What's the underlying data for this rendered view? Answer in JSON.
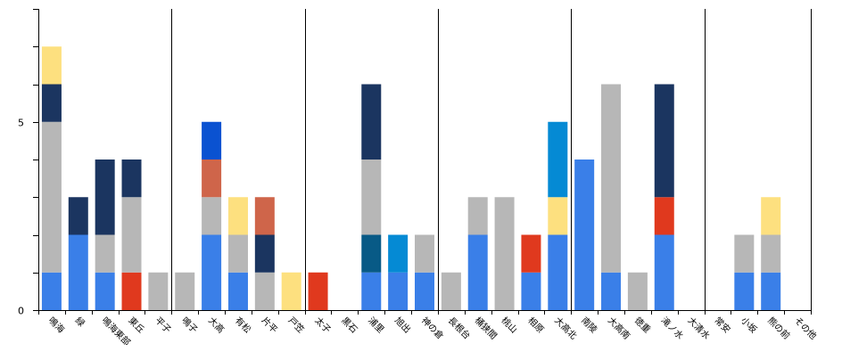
{
  "chart_data": {
    "type": "bar",
    "stacked": true,
    "title": "",
    "xlabel": "",
    "ylabel": "",
    "ylim": [
      0,
      8
    ],
    "yticks": [
      0,
      1,
      2,
      3,
      4,
      5,
      6,
      7,
      8
    ],
    "ytick_labels": {
      "0": "0",
      "5": "5"
    },
    "legend": "none",
    "grid": false,
    "colors": {
      "blue": "#3a7fe8",
      "gray": "#b7b7b7",
      "navy": "#1b3560",
      "yellow": "#fde07f",
      "red": "#e0391e",
      "terracotta": "#cf654a",
      "royal": "#0a52d1",
      "teal": "#085a86",
      "sky": "#058ad4"
    },
    "categories": [
      "鳴海",
      "緑",
      "鳴海東部",
      "東丘",
      "平子",
      "鳴子",
      "大高",
      "有松",
      "片平",
      "戸笠",
      "太子",
      "黒石",
      "浦里",
      "旭出",
      "神の倉",
      "長根台",
      "桶狭間",
      "桃山",
      "相原",
      "大高北",
      "南陵",
      "大高南",
      "徳重",
      "滝ノ水",
      "大清水",
      "常安",
      "小坂",
      "熊の前",
      "その他"
    ],
    "stacks": [
      [
        {
          "color": "blue",
          "value": 1
        },
        {
          "color": "gray",
          "value": 4
        },
        {
          "color": "navy",
          "value": 1
        },
        {
          "color": "yellow",
          "value": 1
        }
      ],
      [
        {
          "color": "blue",
          "value": 2
        },
        {
          "color": "navy",
          "value": 1
        }
      ],
      [
        {
          "color": "blue",
          "value": 1
        },
        {
          "color": "gray",
          "value": 1
        },
        {
          "color": "navy",
          "value": 2
        }
      ],
      [
        {
          "color": "red",
          "value": 1
        },
        {
          "color": "gray",
          "value": 2
        },
        {
          "color": "navy",
          "value": 1
        }
      ],
      [
        {
          "color": "gray",
          "value": 1
        }
      ],
      [
        {
          "color": "gray",
          "value": 1
        }
      ],
      [
        {
          "color": "blue",
          "value": 2
        },
        {
          "color": "gray",
          "value": 1
        },
        {
          "color": "terracotta",
          "value": 1
        },
        {
          "color": "royal",
          "value": 1
        }
      ],
      [
        {
          "color": "blue",
          "value": 1
        },
        {
          "color": "gray",
          "value": 1
        },
        {
          "color": "yellow",
          "value": 1
        }
      ],
      [
        {
          "color": "gray",
          "value": 1
        },
        {
          "color": "navy",
          "value": 1
        },
        {
          "color": "terracotta",
          "value": 1
        }
      ],
      [
        {
          "color": "yellow",
          "value": 1
        }
      ],
      [
        {
          "color": "red",
          "value": 1
        }
      ],
      [],
      [
        {
          "color": "blue",
          "value": 1
        },
        {
          "color": "teal",
          "value": 1
        },
        {
          "color": "gray",
          "value": 2
        },
        {
          "color": "navy",
          "value": 2
        }
      ],
      [
        {
          "color": "blue",
          "value": 1
        },
        {
          "color": "sky",
          "value": 1
        }
      ],
      [
        {
          "color": "blue",
          "value": 1
        },
        {
          "color": "gray",
          "value": 1
        }
      ],
      [
        {
          "color": "gray",
          "value": 1
        }
      ],
      [
        {
          "color": "blue",
          "value": 2
        },
        {
          "color": "gray",
          "value": 1
        }
      ],
      [
        {
          "color": "gray",
          "value": 3
        }
      ],
      [
        {
          "color": "blue",
          "value": 1
        },
        {
          "color": "red",
          "value": 1
        }
      ],
      [
        {
          "color": "blue",
          "value": 2
        },
        {
          "color": "yellow",
          "value": 1
        },
        {
          "color": "sky",
          "value": 2
        }
      ],
      [
        {
          "color": "blue",
          "value": 4
        }
      ],
      [
        {
          "color": "blue",
          "value": 1
        },
        {
          "color": "gray",
          "value": 5
        }
      ],
      [
        {
          "color": "gray",
          "value": 1
        }
      ],
      [
        {
          "color": "blue",
          "value": 2
        },
        {
          "color": "red",
          "value": 1
        },
        {
          "color": "navy",
          "value": 3
        }
      ],
      [],
      [],
      [
        {
          "color": "blue",
          "value": 1
        },
        {
          "color": "gray",
          "value": 1
        }
      ],
      [
        {
          "color": "blue",
          "value": 1
        },
        {
          "color": "gray",
          "value": 1
        },
        {
          "color": "yellow",
          "value": 1
        }
      ],
      []
    ],
    "group_dividers_after": [
      4,
      9,
      14,
      19,
      24
    ]
  }
}
